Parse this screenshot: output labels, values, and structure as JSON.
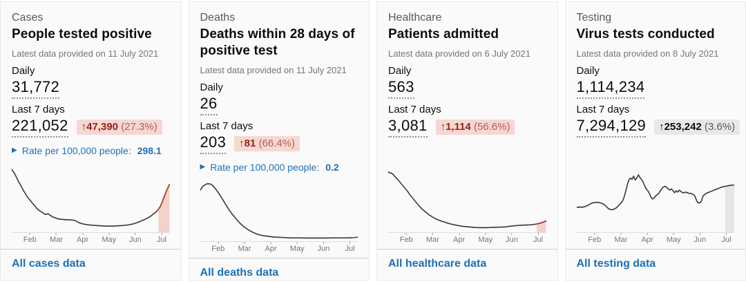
{
  "colors": {
    "accent_blue": "#1d70b8",
    "text": "#0b0c0c",
    "secondary_text": "#505a5f",
    "bad_badge_bg": "#f6d7d2",
    "bad_badge_text": "#942514",
    "neutral_badge_bg": "#e8e8e8",
    "sparkline": "#3f3f3f"
  },
  "cards": [
    {
      "category": "Cases",
      "title": "People tested positive",
      "updated": "Latest data provided on 11 July 2021",
      "daily_label": "Daily",
      "daily_value": "31,772",
      "week_label": "Last 7 days",
      "week_value": "221,052",
      "change": {
        "arrow": "↑",
        "value": "47,390",
        "percent": "(27.3%)",
        "tone": "bad"
      },
      "rate": {
        "icon": "▶",
        "label": "Rate per 100,000 people:",
        "value": "298.1"
      },
      "link": "All cases data",
      "chart": {
        "type": "line",
        "months": [
          "Feb",
          "Mar",
          "Apr",
          "May",
          "Jun",
          "Jul"
        ],
        "points": [
          [
            0,
            97
          ],
          [
            2,
            89
          ],
          [
            4,
            79
          ],
          [
            6,
            70
          ],
          [
            8,
            61
          ],
          [
            10,
            53
          ],
          [
            12,
            47
          ],
          [
            14,
            41
          ],
          [
            15,
            38
          ],
          [
            16,
            35
          ],
          [
            18,
            31
          ],
          [
            20,
            28
          ],
          [
            21,
            26
          ],
          [
            22,
            26
          ],
          [
            23,
            27
          ],
          [
            24,
            25
          ],
          [
            26,
            22
          ],
          [
            28,
            20
          ],
          [
            30,
            18.5
          ],
          [
            32,
            18
          ],
          [
            34,
            17.5
          ],
          [
            36,
            17.5
          ],
          [
            38,
            17
          ],
          [
            40,
            16.5
          ],
          [
            41,
            15
          ],
          [
            43,
            12.5
          ],
          [
            45,
            11
          ],
          [
            47,
            10
          ],
          [
            50,
            9
          ],
          [
            53,
            8.5
          ],
          [
            56,
            8
          ],
          [
            60,
            7.5
          ],
          [
            64,
            7.5
          ],
          [
            68,
            8
          ],
          [
            71,
            8.5
          ],
          [
            74,
            9.5
          ],
          [
            77,
            11
          ],
          [
            80,
            13.5
          ],
          [
            83,
            16.5
          ],
          [
            86,
            20
          ],
          [
            88,
            23
          ],
          [
            90,
            27
          ],
          [
            92,
            31
          ],
          [
            93,
            34
          ],
          [
            94,
            38
          ],
          [
            95,
            43
          ],
          [
            96,
            50
          ],
          [
            97,
            56
          ],
          [
            98,
            63
          ],
          [
            99,
            68
          ],
          [
            100,
            73
          ]
        ],
        "red_from": 92,
        "red_color": "#b13f2e",
        "highlight_from": 93,
        "highlight_color": "#f3d2cb"
      }
    },
    {
      "category": "Deaths",
      "title": "Deaths within 28 days of positive test",
      "updated": "Latest data provided on 11 July 2021",
      "daily_label": "Daily",
      "daily_value": "26",
      "week_label": "Last 7 days",
      "week_value": "203",
      "change": {
        "arrow": "↑",
        "value": "81",
        "percent": "(66.4%)",
        "tone": "bad"
      },
      "rate": {
        "icon": "▶",
        "label": "Rate per 100,000 people:",
        "value": "0.2"
      },
      "link": "All deaths data",
      "chart": {
        "type": "line",
        "months": [
          "Feb",
          "Mar",
          "Apr",
          "May",
          "Jun",
          "Jul"
        ],
        "points": [
          [
            0,
            78
          ],
          [
            1,
            82
          ],
          [
            2,
            85
          ],
          [
            4,
            88
          ],
          [
            6,
            88
          ],
          [
            7,
            87
          ],
          [
            8,
            85
          ],
          [
            10,
            79
          ],
          [
            12,
            72
          ],
          [
            14,
            64
          ],
          [
            16,
            56
          ],
          [
            18,
            48
          ],
          [
            20,
            41
          ],
          [
            22,
            35
          ],
          [
            24,
            29
          ],
          [
            26,
            24
          ],
          [
            28,
            20
          ],
          [
            30,
            16.5
          ],
          [
            32,
            13.5
          ],
          [
            34,
            11
          ],
          [
            36,
            9
          ],
          [
            38,
            7.5
          ],
          [
            40,
            6.5
          ],
          [
            43,
            5.5
          ],
          [
            46,
            4.5
          ],
          [
            50,
            4
          ],
          [
            54,
            3.5
          ],
          [
            58,
            3
          ],
          [
            62,
            3
          ],
          [
            66,
            2.8
          ],
          [
            70,
            2.8
          ],
          [
            75,
            2.8
          ],
          [
            80,
            2.8
          ],
          [
            85,
            3
          ],
          [
            90,
            3
          ],
          [
            94,
            3.2
          ],
          [
            97,
            3.5
          ],
          [
            100,
            4.2
          ]
        ],
        "red_from": 95,
        "red_color": "#b13f2e",
        "highlight_from": null,
        "highlight_color": null
      }
    },
    {
      "category": "Healthcare",
      "title": "Patients admitted",
      "updated": "Latest data provided on 6 July 2021",
      "daily_label": "Daily",
      "daily_value": "563",
      "week_label": "Last 7 days",
      "week_value": "3,081",
      "change": {
        "arrow": "↑",
        "value": "1,114",
        "percent": "(56.6%)",
        "tone": "bad"
      },
      "rate": null,
      "link": "All healthcare data",
      "chart": {
        "type": "line",
        "months": [
          "Feb",
          "Mar",
          "Apr",
          "May",
          "Jun",
          "Jul"
        ],
        "points": [
          [
            0,
            93
          ],
          [
            1,
            91
          ],
          [
            2,
            91
          ],
          [
            3,
            89
          ],
          [
            4,
            86
          ],
          [
            6,
            81
          ],
          [
            8,
            75
          ],
          [
            10,
            69
          ],
          [
            12,
            63
          ],
          [
            14,
            56
          ],
          [
            16,
            50
          ],
          [
            18,
            44
          ],
          [
            20,
            38
          ],
          [
            22,
            33
          ],
          [
            24,
            29
          ],
          [
            26,
            25
          ],
          [
            28,
            22
          ],
          [
            30,
            19
          ],
          [
            32,
            17
          ],
          [
            34,
            15
          ],
          [
            36,
            13.5
          ],
          [
            38,
            12
          ],
          [
            40,
            10.5
          ],
          [
            42,
            9.5
          ],
          [
            44,
            8.5
          ],
          [
            46,
            7.5
          ],
          [
            48,
            7
          ],
          [
            50,
            6.5
          ],
          [
            52,
            6
          ],
          [
            54,
            5.5
          ],
          [
            56,
            5.2
          ],
          [
            58,
            5
          ],
          [
            60,
            5
          ],
          [
            62,
            5
          ],
          [
            64,
            5.2
          ],
          [
            66,
            5.5
          ],
          [
            68,
            5.5
          ],
          [
            70,
            5.8
          ],
          [
            72,
            6
          ],
          [
            74,
            6.2
          ],
          [
            76,
            6.8
          ],
          [
            78,
            7.5
          ],
          [
            80,
            8
          ],
          [
            82,
            8.5
          ],
          [
            84,
            8.8
          ],
          [
            86,
            9
          ],
          [
            88,
            9.2
          ],
          [
            90,
            9.5
          ],
          [
            92,
            10
          ],
          [
            94,
            10.8
          ],
          [
            96,
            12
          ],
          [
            98,
            13.5
          ],
          [
            100,
            15.5
          ]
        ],
        "red_from": 94,
        "red_color": "#b13f2e",
        "highlight_from": 94,
        "highlight_color": "#f3d2cb"
      }
    },
    {
      "category": "Testing",
      "title": "Virus tests conducted",
      "updated": "Latest data provided on 8 July 2021",
      "daily_label": "Daily",
      "daily_value": "1,114,234",
      "week_label": "Last 7 days",
      "week_value": "7,294,129",
      "change": {
        "arrow": "↑",
        "value": "253,242",
        "percent": "(3.6%)",
        "tone": "neutral"
      },
      "rate": null,
      "link": "All testing data",
      "chart": {
        "type": "line",
        "months": [
          "Feb",
          "Mar",
          "Apr",
          "May",
          "Jun",
          "Jul"
        ],
        "points": [
          [
            0,
            37
          ],
          [
            2,
            37.5
          ],
          [
            3,
            37
          ],
          [
            5,
            38
          ],
          [
            7,
            40
          ],
          [
            9,
            43
          ],
          [
            11,
            44.5
          ],
          [
            13,
            45
          ],
          [
            15,
            44
          ],
          [
            17,
            42
          ],
          [
            18,
            40
          ],
          [
            20,
            35
          ],
          [
            22,
            33
          ],
          [
            23,
            33.5
          ],
          [
            25,
            36
          ],
          [
            27,
            41
          ],
          [
            29,
            47
          ],
          [
            30,
            53
          ],
          [
            31,
            62
          ],
          [
            32,
            72
          ],
          [
            33,
            80
          ],
          [
            34,
            83
          ],
          [
            35,
            81
          ],
          [
            36,
            86
          ],
          [
            37,
            80
          ],
          [
            38,
            83
          ],
          [
            39,
            88
          ],
          [
            40,
            84
          ],
          [
            41,
            81
          ],
          [
            42,
            77
          ],
          [
            43,
            71
          ],
          [
            44,
            66
          ],
          [
            45,
            63
          ],
          [
            46,
            59
          ],
          [
            47,
            53
          ],
          [
            48,
            50
          ],
          [
            49,
            52
          ],
          [
            50,
            55
          ],
          [
            51,
            57
          ],
          [
            52,
            59
          ],
          [
            53,
            63
          ],
          [
            54,
            67
          ],
          [
            55,
            69
          ],
          [
            56,
            70
          ],
          [
            57,
            68
          ],
          [
            58,
            66
          ],
          [
            59,
            64
          ],
          [
            60,
            66
          ],
          [
            61,
            63
          ],
          [
            62,
            60
          ],
          [
            63,
            63
          ],
          [
            64,
            61
          ],
          [
            65,
            64
          ],
          [
            66,
            62
          ],
          [
            67,
            60
          ],
          [
            68,
            60
          ],
          [
            69,
            61
          ],
          [
            70,
            60
          ],
          [
            71,
            59
          ],
          [
            72,
            59
          ],
          [
            73,
            58
          ],
          [
            74,
            57
          ],
          [
            75,
            54
          ],
          [
            76,
            47
          ],
          [
            77,
            44
          ],
          [
            78,
            44
          ],
          [
            79,
            47
          ],
          [
            80,
            55
          ],
          [
            81,
            57
          ],
          [
            82,
            59
          ],
          [
            84,
            61
          ],
          [
            86,
            63
          ],
          [
            88,
            65
          ],
          [
            90,
            67
          ],
          [
            92,
            69
          ],
          [
            94,
            70
          ],
          [
            96,
            71
          ],
          [
            98,
            72
          ],
          [
            100,
            72
          ]
        ],
        "red_from": null,
        "red_color": null,
        "highlight_from": 93,
        "highlight_color": "#e6e6e6"
      }
    }
  ]
}
